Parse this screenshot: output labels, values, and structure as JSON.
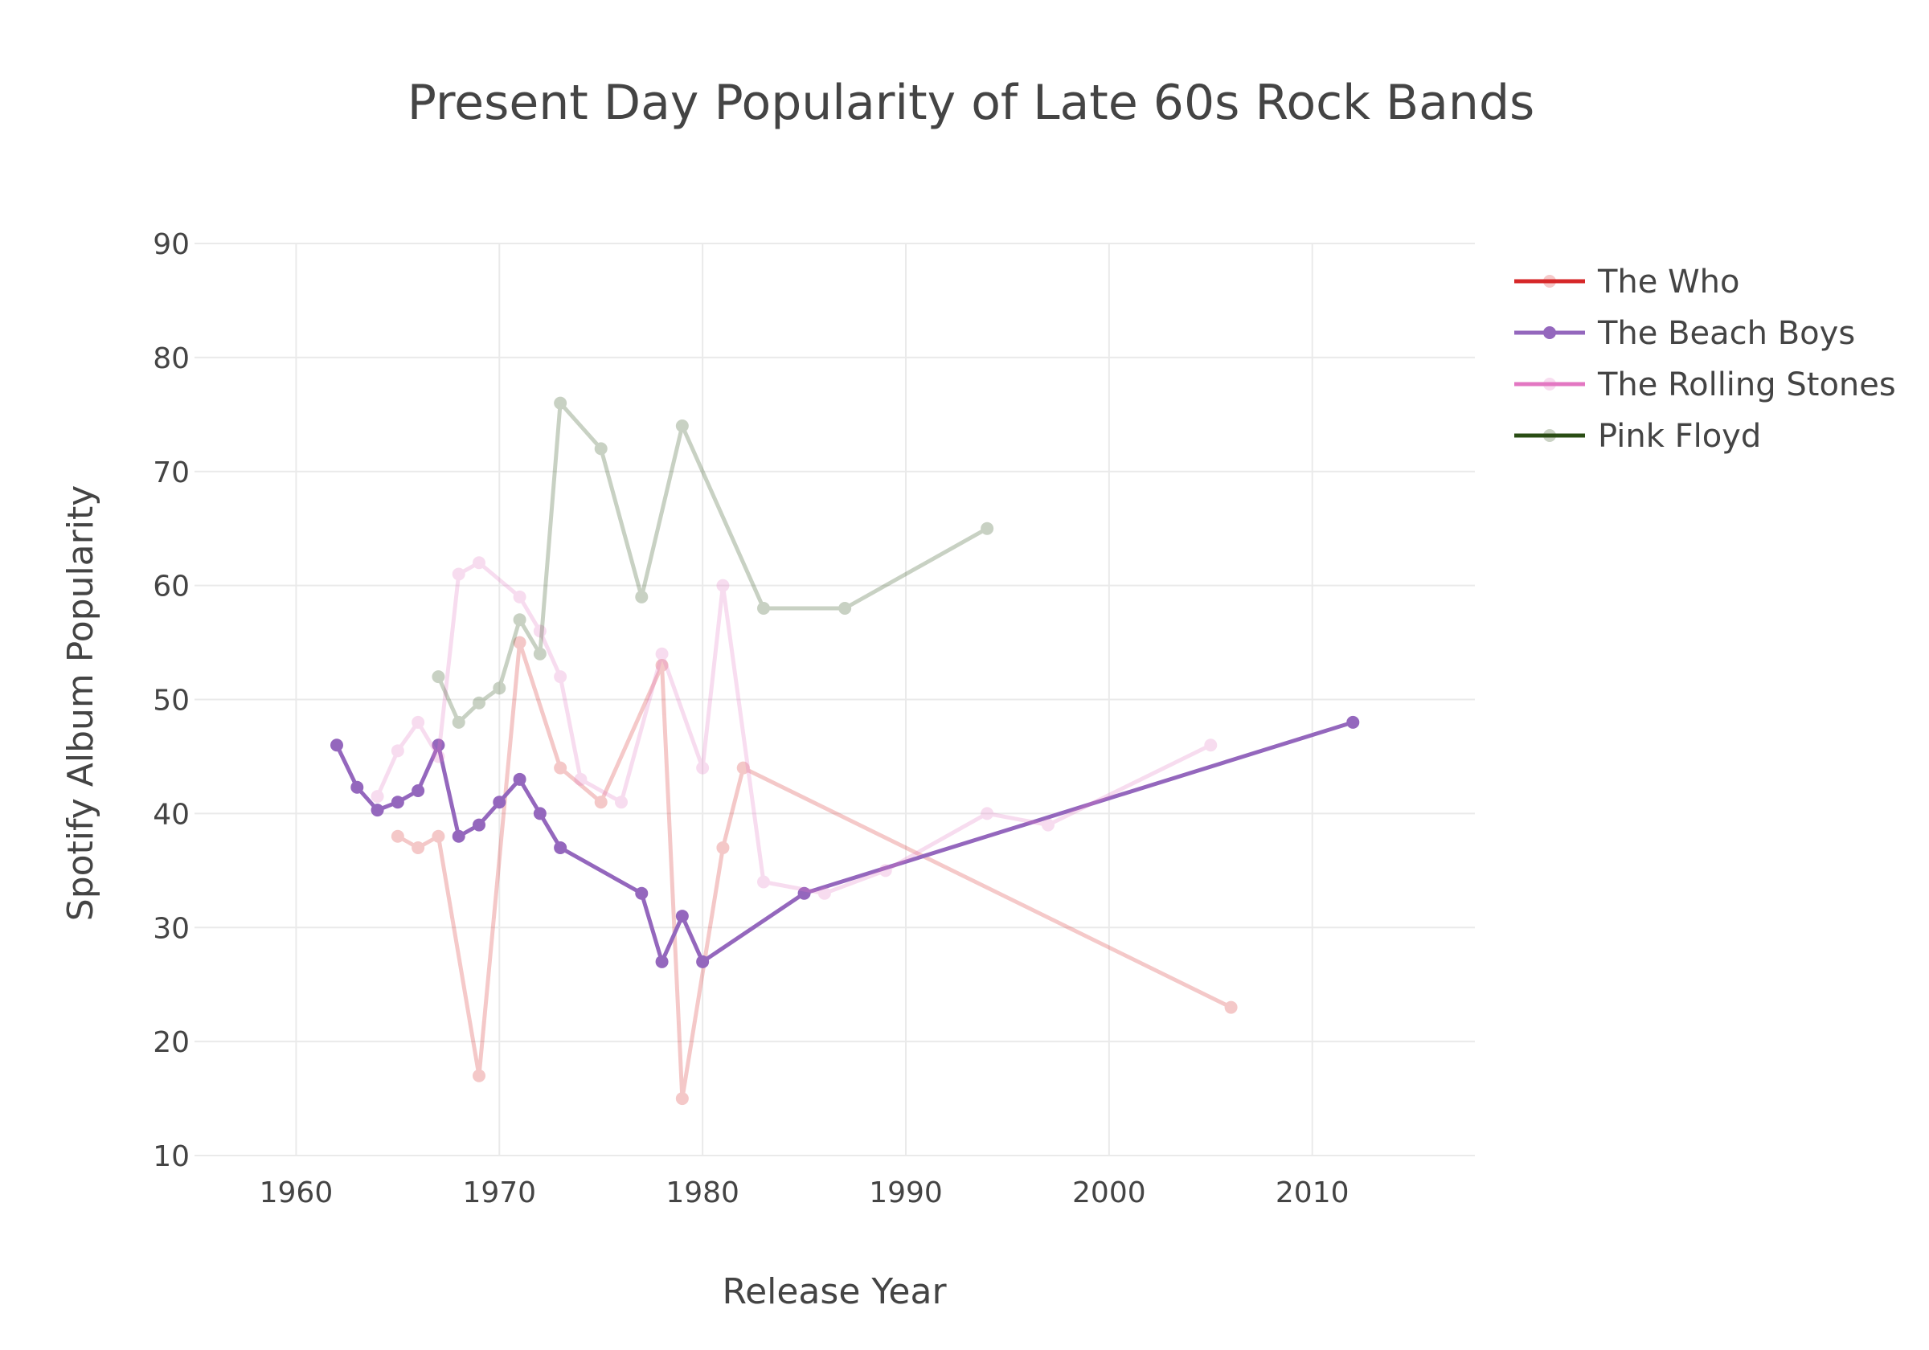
{
  "chart_data": {
    "type": "line",
    "title": "Present Day Popularity of Late 60s Rock Bands",
    "xlabel": "Release Year",
    "ylabel": "Spotify Album Popularity",
    "xlim": [
      1955,
      2018
    ],
    "ylim": [
      10,
      90
    ],
    "xticks": [
      1960,
      1970,
      1980,
      1990,
      2000,
      2010
    ],
    "yticks": [
      10,
      20,
      30,
      40,
      50,
      60,
      70,
      80,
      90
    ],
    "grid": true,
    "legend_position": "top-right",
    "series": [
      {
        "name": "The Who",
        "color": "#d62728",
        "opacity": 0.25,
        "points": [
          [
            1965,
            38
          ],
          [
            1966,
            37
          ],
          [
            1967,
            38
          ],
          [
            1969,
            17
          ],
          [
            1971,
            55
          ],
          [
            1973,
            44
          ],
          [
            1975,
            41
          ],
          [
            1978,
            53
          ],
          [
            1979,
            15
          ],
          [
            1981,
            37
          ],
          [
            1982,
            44
          ],
          [
            2006,
            23
          ]
        ]
      },
      {
        "name": "The Beach Boys",
        "color": "#9467bd",
        "opacity": 1,
        "points": [
          [
            1962,
            46
          ],
          [
            1963,
            42.3
          ],
          [
            1964,
            40.3
          ],
          [
            1965,
            41
          ],
          [
            1966,
            42
          ],
          [
            1967,
            46
          ],
          [
            1968,
            38
          ],
          [
            1969,
            39
          ],
          [
            1970,
            41
          ],
          [
            1971,
            43
          ],
          [
            1972,
            40
          ],
          [
            1973,
            37
          ],
          [
            1977,
            33
          ],
          [
            1978,
            27
          ],
          [
            1979,
            31
          ],
          [
            1980,
            27
          ],
          [
            1985,
            33
          ],
          [
            2012,
            48
          ]
        ]
      },
      {
        "name": "The Rolling Stones",
        "color": "#e377c2",
        "opacity": 0.25,
        "points": [
          [
            1964,
            41.5
          ],
          [
            1965,
            45.5
          ],
          [
            1966,
            48
          ],
          [
            1967,
            45
          ],
          [
            1968,
            61
          ],
          [
            1969,
            62
          ],
          [
            1971,
            59
          ],
          [
            1972,
            56
          ],
          [
            1973,
            52
          ],
          [
            1974,
            43
          ],
          [
            1976,
            41
          ],
          [
            1978,
            54
          ],
          [
            1980,
            44
          ],
          [
            1981,
            60
          ],
          [
            1983,
            34
          ],
          [
            1986,
            33
          ],
          [
            1989,
            35
          ],
          [
            1994,
            40
          ],
          [
            1997,
            39
          ],
          [
            2005,
            46
          ]
        ]
      },
      {
        "name": "Pink Floyd",
        "color": "#2a4d14",
        "opacity": 0.25,
        "points": [
          [
            1967,
            52
          ],
          [
            1968,
            48
          ],
          [
            1969,
            49.7
          ],
          [
            1970,
            51
          ],
          [
            1971,
            57
          ],
          [
            1972,
            54
          ],
          [
            1973,
            76
          ],
          [
            1975,
            72
          ],
          [
            1977,
            59
          ],
          [
            1979,
            74
          ],
          [
            1983,
            58
          ],
          [
            1987,
            58
          ],
          [
            1994,
            65
          ]
        ]
      }
    ]
  }
}
